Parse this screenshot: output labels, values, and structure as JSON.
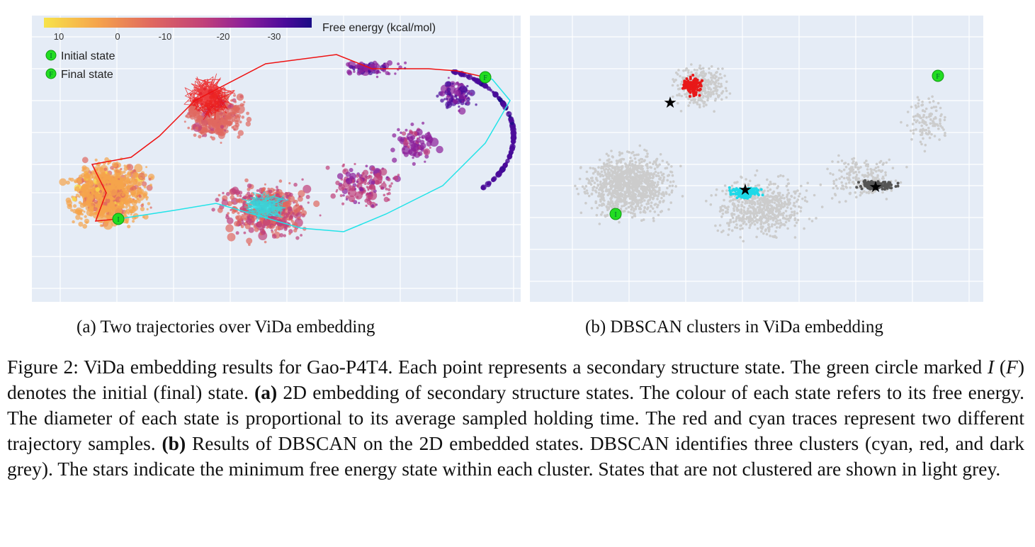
{
  "panel_a": {
    "colorbar_title": "Free energy (kcal/mol)",
    "colorbar_ticks": [
      "10",
      "0",
      "-10",
      "-20",
      "-30"
    ],
    "colorbar_colors": [
      "#f7e34a",
      "#f5a44c",
      "#e0685f",
      "#c0407a",
      "#8c1f9a",
      "#4a0a9a",
      "#1a0c86"
    ],
    "legend": [
      {
        "marker": "I",
        "label": "Initial state"
      },
      {
        "marker": "F",
        "label": "Final state"
      }
    ],
    "trace_colors": {
      "red": "#ee1111",
      "cyan": "#22e3e8"
    },
    "state_marker_color": "#22dd22",
    "caption": "(a) Two trajectories over ViDa embedding"
  },
  "panel_b": {
    "markers": {
      "initial": "I",
      "final": "F"
    },
    "cluster_colors": {
      "cyan": "#1ed9e8",
      "red": "#e81818",
      "dark_grey": "#555555",
      "unclustered": "#cccccc"
    },
    "caption": "(b) DBSCAN clusters in ViDa embedding"
  },
  "caption": {
    "p1": "Figure 2: ViDa embedding results for Gao-P4T4. Each point represents a secondary structure state. The green circle marked ",
    "var_i": "I",
    "p2": " (",
    "var_f": "F",
    "p3": ") denotes the initial (final) state. ",
    "label_a": "(a)",
    "p4": " 2D embedding of secondary structure states. The colour of each state refers to its free energy. The diameter of each state is proportional to its average sampled holding time. The red and cyan traces represent two different trajectory samples. ",
    "label_b": "(b)",
    "p5": " Results of DBSCAN on the 2D embedded states. DBSCAN identifies three clusters (cyan, red, and dark grey). The stars indicate the minimum free energy state within each cluster. States that are not clustered are shown in light grey."
  }
}
